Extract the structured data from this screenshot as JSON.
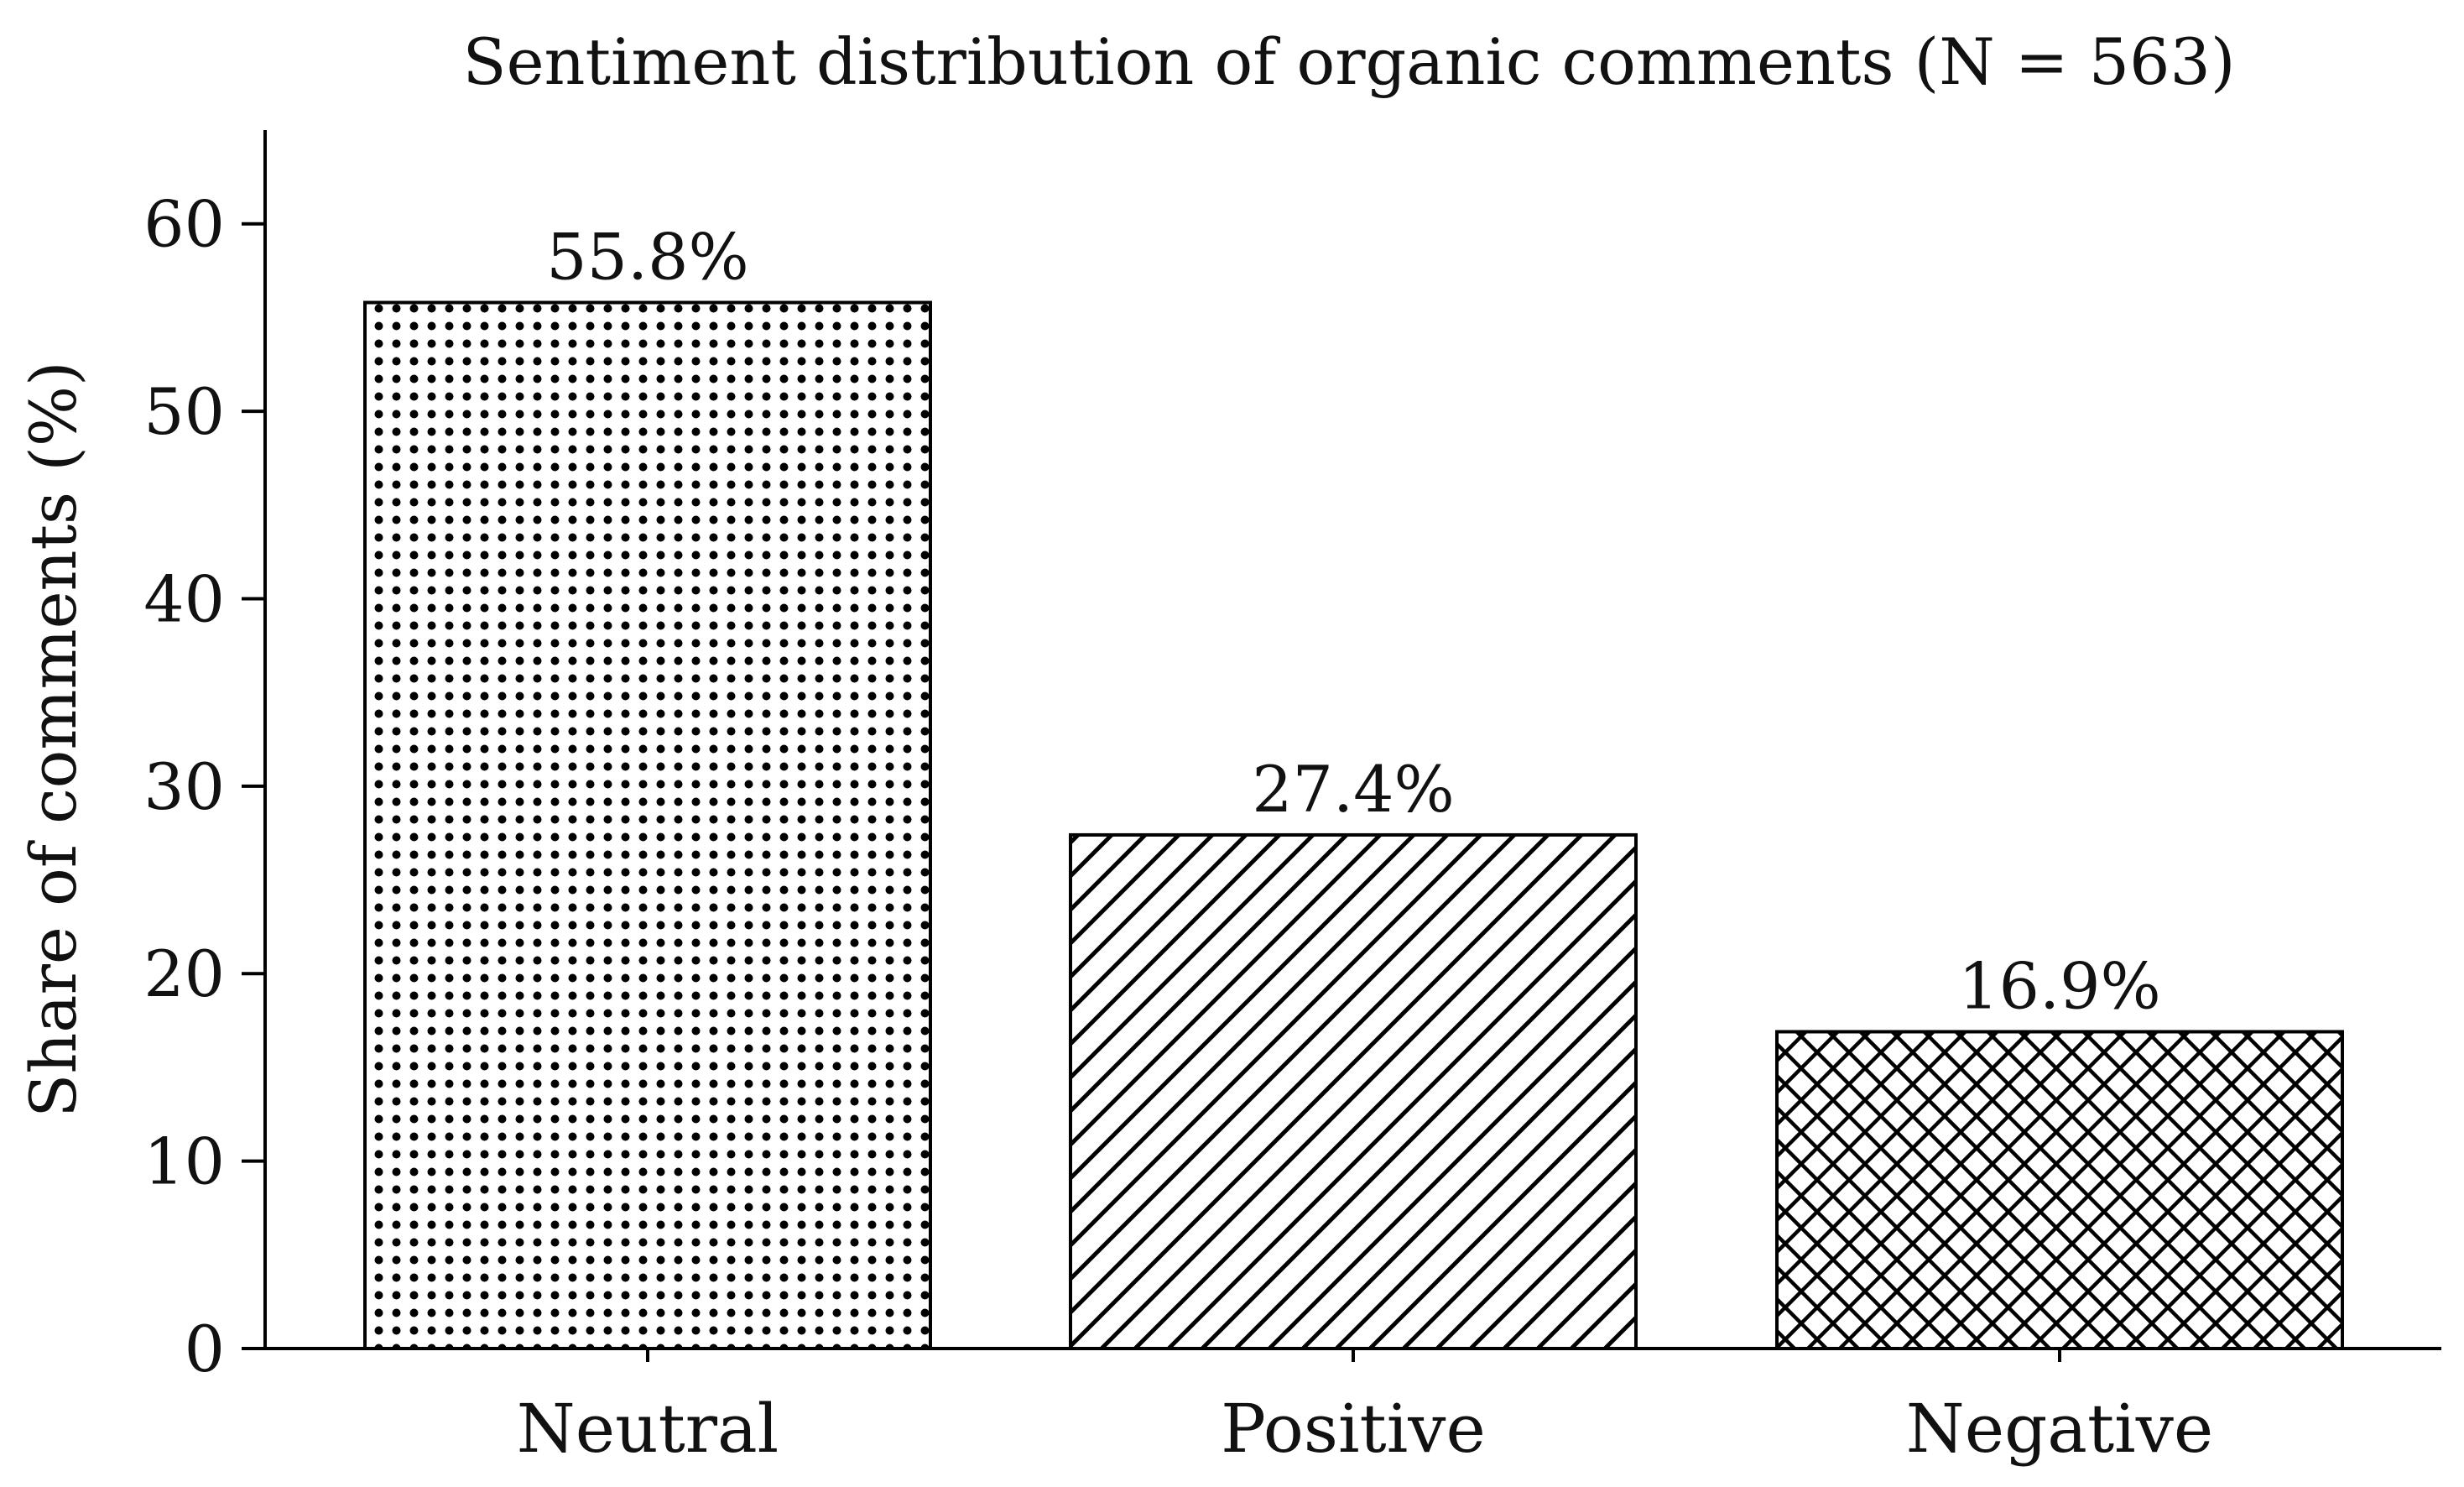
{
  "chart_data": {
    "type": "bar",
    "title": "Sentiment distribution of organic comments (N = 563)",
    "xlabel": "",
    "ylabel": "Share of comments (%)",
    "categories": [
      "Neutral",
      "Positive",
      "Negative"
    ],
    "values": [
      55.8,
      27.4,
      16.9
    ],
    "value_labels": [
      "55.8%",
      "27.4%",
      "16.9%"
    ],
    "hatches": [
      "dots",
      "diagonal",
      "crosshatch"
    ],
    "ylim": [
      0,
      65
    ],
    "yticks": [
      0,
      10,
      20,
      30,
      40,
      50,
      60
    ],
    "ytick_labels": [
      "0",
      "10",
      "20",
      "30",
      "40",
      "50",
      "60"
    ],
    "grid": false,
    "legend": "none",
    "colors": {
      "bar_fill": "#ffffff",
      "bar_edge": "#000000",
      "hatch": "#000000",
      "axis": "#000000",
      "text": "#111111"
    }
  }
}
